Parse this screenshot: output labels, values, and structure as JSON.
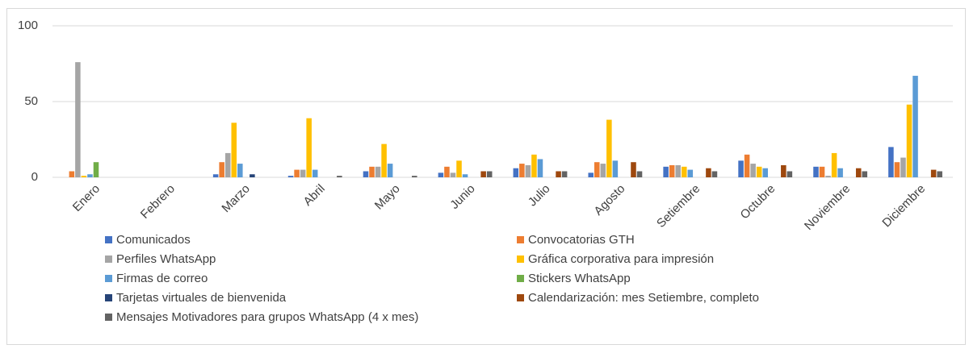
{
  "chart_data": {
    "type": "bar",
    "categories": [
      "Enero",
      "Febrero",
      "Marzo",
      "Abril",
      "Mayo",
      "Junio",
      "Julio",
      "Agosto",
      "Setiembre",
      "Octubre",
      "Noviembre",
      "Diciembre"
    ],
    "series": [
      {
        "name": "Comunicados",
        "color": "#4472c4",
        "values": [
          0,
          0,
          2,
          1,
          4,
          3,
          6,
          3,
          7,
          11,
          7,
          20
        ]
      },
      {
        "name": "Convocatorias GTH",
        "color": "#ed7d31",
        "values": [
          4,
          0,
          10,
          5,
          7,
          7,
          9,
          10,
          8,
          15,
          7,
          10
        ]
      },
      {
        "name": "Perfiles WhatsApp",
        "color": "#a5a5a5",
        "values": [
          76,
          0,
          16,
          5,
          7,
          3,
          8,
          9,
          8,
          9,
          1,
          13
        ]
      },
      {
        "name": "Gráfica corporativa para impresión",
        "color": "#ffc000",
        "values": [
          1,
          0,
          36,
          39,
          22,
          11,
          15,
          38,
          7,
          7,
          16,
          48
        ]
      },
      {
        "name": "Firmas de correo",
        "color": "#5b9bd5",
        "values": [
          2,
          0,
          9,
          5,
          9,
          2,
          12,
          11,
          5,
          6,
          6,
          67
        ]
      },
      {
        "name": "Stickers WhatsApp",
        "color": "#70ad47",
        "values": [
          10,
          0,
          0,
          0,
          0,
          0,
          0,
          0,
          0,
          0,
          0,
          0
        ]
      },
      {
        "name": "Tarjetas virtuales de bienvenida",
        "color": "#264478",
        "values": [
          0,
          0,
          2,
          0,
          0,
          0,
          0,
          0,
          0,
          0,
          0,
          0
        ]
      },
      {
        "name": "Calendarización: mes Setiembre, completo",
        "color": "#9e480e",
        "values": [
          0,
          0,
          0,
          0,
          0,
          4,
          4,
          10,
          6,
          8,
          6,
          5
        ]
      },
      {
        "name": "Mensajes Motivadores para grupos WhatsApp (4 x mes)",
        "color": "#636363",
        "values": [
          0,
          0,
          0,
          1,
          1,
          4,
          4,
          4,
          4,
          4,
          4,
          4
        ]
      }
    ],
    "ylim": [
      0,
      100
    ],
    "yticks": [
      0,
      50,
      100
    ],
    "grid": true,
    "legend": "bottom"
  }
}
